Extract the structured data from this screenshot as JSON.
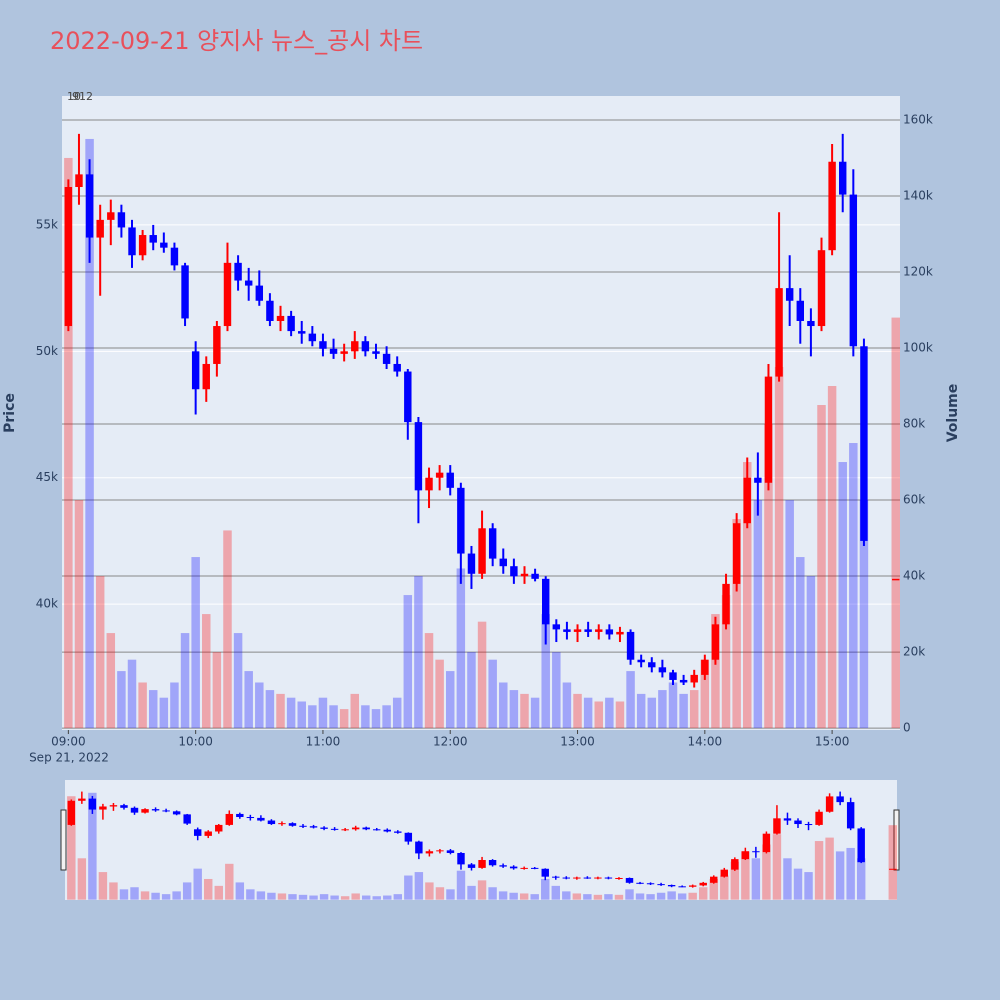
{
  "chart_data": {
    "type": "candlestick",
    "title": "2022-09-21 양지사 뉴스_공시 차트",
    "y_label": "Price",
    "y2_label": "Volume",
    "x_date_label": "Sep 21, 2022",
    "annotations": [
      "10",
      "912"
    ],
    "increasing_color": "#ff0000",
    "decreasing_color": "#0000ff",
    "grid": true,
    "x": [
      "09:00",
      "09:05",
      "09:10",
      "09:15",
      "09:20",
      "09:25",
      "09:30",
      "09:35",
      "09:40",
      "09:45",
      "09:50",
      "09:55",
      "10:00",
      "10:05",
      "10:10",
      "10:15",
      "10:20",
      "10:25",
      "10:30",
      "10:35",
      "10:40",
      "10:45",
      "10:50",
      "10:55",
      "11:00",
      "11:05",
      "11:10",
      "11:15",
      "11:20",
      "11:25",
      "11:30",
      "11:35",
      "11:40",
      "11:45",
      "11:50",
      "11:55",
      "12:00",
      "12:05",
      "12:10",
      "12:15",
      "12:20",
      "12:25",
      "12:30",
      "12:35",
      "12:40",
      "12:45",
      "12:50",
      "12:55",
      "13:00",
      "13:05",
      "13:10",
      "13:15",
      "13:20",
      "13:25",
      "13:30",
      "13:35",
      "13:40",
      "13:45",
      "13:50",
      "13:55",
      "14:00",
      "14:05",
      "14:10",
      "14:15",
      "14:20",
      "14:25",
      "14:30",
      "14:35",
      "14:40",
      "14:45",
      "14:50",
      "14:55",
      "15:00",
      "15:05",
      "15:10",
      "15:15",
      "15:30"
    ],
    "open": [
      51000,
      56500,
      57000,
      54500,
      55200,
      55500,
      54900,
      53800,
      54600,
      54300,
      54100,
      53400,
      50000,
      48500,
      49500,
      51000,
      53500,
      52800,
      52600,
      52000,
      51200,
      51400,
      50800,
      50700,
      50400,
      50100,
      49900,
      50000,
      50400,
      50000,
      49900,
      49500,
      49200,
      47200,
      44500,
      45000,
      45200,
      44600,
      42000,
      41200,
      43000,
      41800,
      41500,
      41100,
      41200,
      41000,
      39200,
      39000,
      38900,
      39000,
      38900,
      39000,
      38800,
      38900,
      37800,
      37700,
      37500,
      37300,
      37000,
      36900,
      37200,
      37800,
      39200,
      40800,
      43200,
      45000,
      44800,
      49000,
      52500,
      52000,
      51200,
      51000,
      54000,
      57500,
      56200,
      50200,
      41000
    ],
    "high": [
      56800,
      58600,
      57600,
      55800,
      56000,
      55800,
      55200,
      54800,
      55000,
      54700,
      54300,
      53500,
      50400,
      49800,
      51200,
      54300,
      53800,
      53300,
      53200,
      52300,
      51800,
      51600,
      51200,
      51000,
      50700,
      50500,
      50300,
      50800,
      50600,
      50300,
      50200,
      49800,
      49300,
      47400,
      45400,
      45500,
      45500,
      44800,
      42300,
      43700,
      43200,
      42200,
      41800,
      41500,
      41400,
      41100,
      39400,
      39300,
      39200,
      39300,
      39200,
      39200,
      39100,
      39000,
      38000,
      37900,
      37800,
      37400,
      37200,
      37400,
      38000,
      39500,
      41200,
      43600,
      45800,
      46000,
      49500,
      55500,
      53800,
      52500,
      51700,
      54500,
      58200,
      58600,
      57200,
      50500,
      41000
    ],
    "low": [
      50800,
      55800,
      53500,
      52200,
      54200,
      54500,
      53300,
      53600,
      54000,
      53900,
      53200,
      51000,
      47500,
      48000,
      49000,
      50800,
      52400,
      52000,
      51800,
      51000,
      50800,
      50600,
      50300,
      50200,
      49800,
      49700,
      49600,
      49700,
      49800,
      49700,
      49300,
      49000,
      46500,
      43200,
      43800,
      44500,
      44300,
      40800,
      40600,
      41000,
      41500,
      41200,
      40800,
      40800,
      40900,
      38400,
      38500,
      38600,
      38500,
      38700,
      38600,
      38600,
      38500,
      37600,
      37500,
      37300,
      37100,
      36800,
      36800,
      36700,
      37000,
      37600,
      39000,
      40500,
      43000,
      43500,
      44500,
      48800,
      51000,
      50300,
      49800,
      50800,
      53800,
      55500,
      49800,
      42300,
      41000
    ],
    "close": [
      56500,
      57000,
      54500,
      55200,
      55500,
      54900,
      53800,
      54600,
      54300,
      54100,
      53400,
      51300,
      48500,
      49500,
      51000,
      53500,
      52800,
      52600,
      52000,
      51200,
      51400,
      50800,
      50700,
      50400,
      50100,
      49900,
      50000,
      50400,
      50000,
      49900,
      49500,
      49200,
      47200,
      44500,
      45000,
      45200,
      44600,
      42000,
      41200,
      43000,
      41800,
      41500,
      41100,
      41200,
      41000,
      39200,
      39000,
      38900,
      39000,
      38900,
      39000,
      38800,
      38900,
      37800,
      37700,
      37500,
      37300,
      37000,
      36900,
      37200,
      37800,
      39200,
      40800,
      43200,
      45000,
      44800,
      49000,
      52500,
      52000,
      51200,
      51000,
      54000,
      57500,
      56200,
      50200,
      42500,
      41000
    ],
    "volume": [
      150000,
      60000,
      155000,
      40000,
      25000,
      15000,
      18000,
      12000,
      10000,
      8000,
      12000,
      25000,
      45000,
      30000,
      20000,
      52000,
      25000,
      15000,
      12000,
      10000,
      9000,
      8000,
      7000,
      6000,
      8000,
      6000,
      5000,
      9000,
      6000,
      5000,
      6000,
      8000,
      35000,
      40000,
      25000,
      18000,
      15000,
      42000,
      20000,
      28000,
      18000,
      12000,
      10000,
      9000,
      8000,
      30000,
      20000,
      12000,
      9000,
      8000,
      7000,
      8000,
      7000,
      15000,
      9000,
      8000,
      10000,
      12000,
      9000,
      10000,
      18000,
      30000,
      35000,
      55000,
      70000,
      60000,
      80000,
      95000,
      60000,
      45000,
      40000,
      85000,
      90000,
      70000,
      75000,
      60000,
      108000
    ],
    "xlim": [
      "08:57",
      "15:32"
    ],
    "xticks": [
      "09:00",
      "10:00",
      "11:00",
      "12:00",
      "13:00",
      "14:00",
      "15:00"
    ],
    "ylim": [
      35020,
      60100
    ],
    "yticks": [
      {
        "value": 40000,
        "label": "40k"
      },
      {
        "value": 45000,
        "label": "45k"
      },
      {
        "value": 50000,
        "label": "50k"
      },
      {
        "value": 55000,
        "label": "55k"
      }
    ],
    "y2lim": [
      -500,
      166300
    ],
    "y2ticks": [
      0,
      {
        "value": 20000,
        "label": "20k"
      },
      {
        "value": 40000,
        "label": "40k"
      },
      {
        "value": 60000,
        "label": "60k"
      },
      {
        "value": 80000,
        "label": "80k"
      },
      {
        "value": 100000,
        "label": "100k"
      },
      {
        "value": 120000,
        "label": "120k"
      },
      {
        "value": 140000,
        "label": "140k"
      },
      {
        "value": 160000,
        "label": "160k"
      }
    ]
  }
}
